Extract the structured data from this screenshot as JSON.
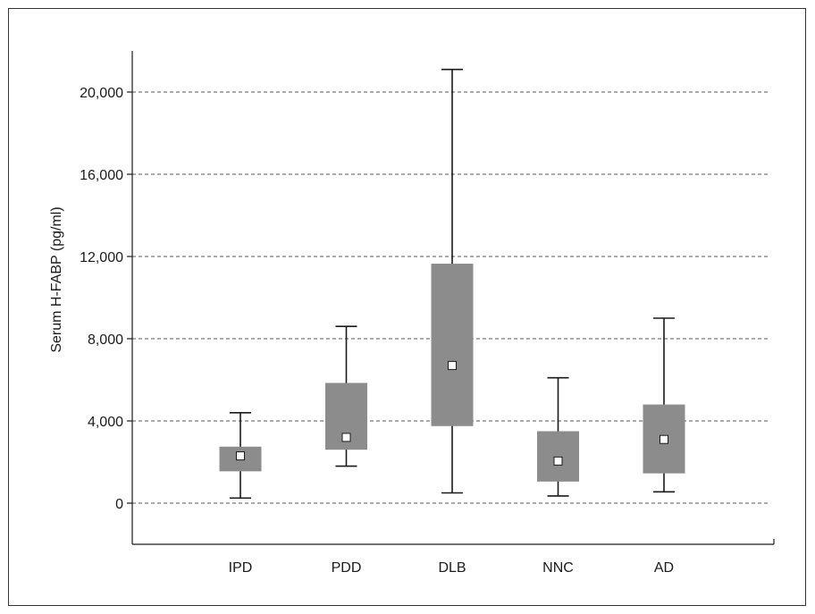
{
  "chart_data": {
    "type": "boxplot",
    "title": "",
    "xlabel": "",
    "ylabel": "Serum H-FABP (pg/ml)",
    "ylim": [
      -2000,
      22000
    ],
    "yticks": [
      0,
      4000,
      8000,
      12000,
      16000,
      20000
    ],
    "ytick_labels": [
      "0",
      "4,000",
      "8,000",
      "12,000",
      "16,000",
      "20,000"
    ],
    "grid": "horizontal-dashed",
    "categories": [
      "IPD",
      "PDD",
      "DLB",
      "NNC",
      "AD"
    ],
    "boxes": [
      {
        "label": "IPD",
        "whisker_low": 250,
        "q1": 1550,
        "median": 2300,
        "q3": 2750,
        "whisker_high": 4400
      },
      {
        "label": "PDD",
        "whisker_low": 1800,
        "q1": 2600,
        "median": 3200,
        "q3": 5850,
        "whisker_high": 8600
      },
      {
        "label": "DLB",
        "whisker_low": 500,
        "q1": 3750,
        "median": 6700,
        "q3": 11650,
        "whisker_high": 21100
      },
      {
        "label": "NNC",
        "whisker_low": 350,
        "q1": 1050,
        "median": 2050,
        "q3": 3500,
        "whisker_high": 6100
      },
      {
        "label": "AD",
        "whisker_low": 550,
        "q1": 1450,
        "median": 3100,
        "q3": 4800,
        "whisker_high": 9000
      }
    ],
    "colors": {
      "box": "#8c8c8c",
      "line": "#1a1a1a",
      "marker": "#ffffff",
      "grid": "#555555"
    }
  }
}
